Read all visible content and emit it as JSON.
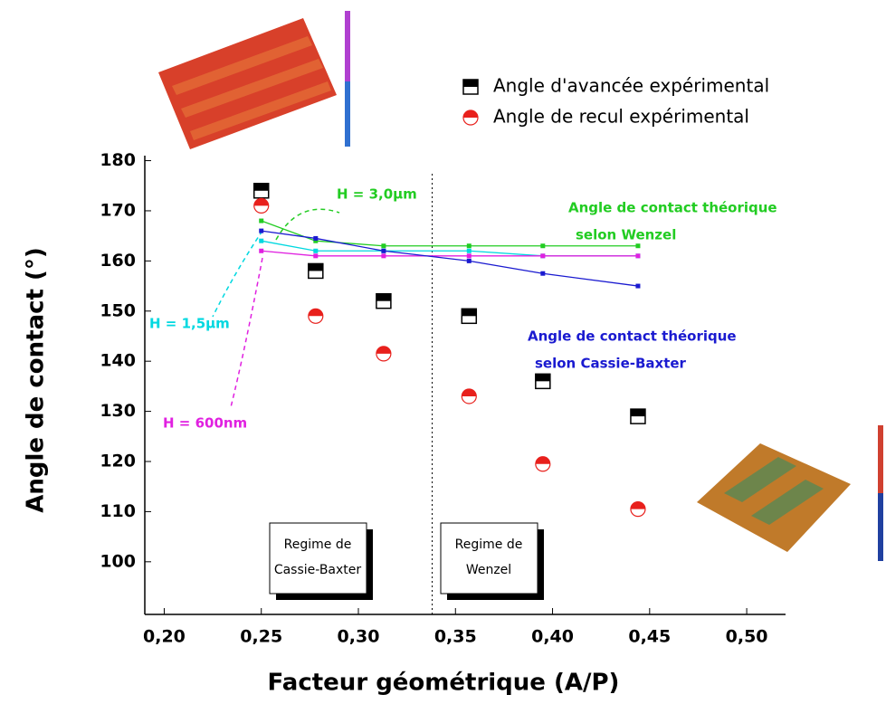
{
  "chart_data": {
    "type": "scatter-line",
    "x_label": "Facteur géométrique (A/P)",
    "y_label": "Angle de contact (°)",
    "xlim": [
      0.19,
      0.52
    ],
    "ylim": [
      89.5,
      181
    ],
    "xticks": [
      {
        "value": 0.2,
        "label": "0,20"
      },
      {
        "value": 0.25,
        "label": "0,25"
      },
      {
        "value": 0.3,
        "label": "0,30"
      },
      {
        "value": 0.35,
        "label": "0,35"
      },
      {
        "value": 0.4,
        "label": "0,40"
      },
      {
        "value": 0.45,
        "label": "0,45"
      },
      {
        "value": 0.5,
        "label": "0,50"
      }
    ],
    "yticks": [
      100,
      110,
      120,
      130,
      140,
      150,
      160,
      170,
      180
    ],
    "x": [
      0.25,
      0.278,
      0.313,
      0.357,
      0.395,
      0.444
    ],
    "series": [
      {
        "name": "Angle d'avancée expérimental",
        "color": "#000000",
        "marker": "square",
        "values": [
          174,
          158,
          152,
          149,
          136,
          129
        ]
      },
      {
        "name": "Angle de recul expérimental",
        "color": "#e8201c",
        "marker": "circle",
        "values": [
          171,
          149,
          141.5,
          133,
          119.5,
          110.5
        ]
      },
      {
        "name": "H = 3,0µm",
        "color": "#22cc22",
        "marker": "line",
        "values": [
          168,
          164,
          163,
          163,
          163,
          163
        ]
      },
      {
        "name": "H = 1,5µm",
        "color": "#00d8e0",
        "marker": "line",
        "values": [
          164,
          162,
          162,
          162,
          161,
          161
        ]
      },
      {
        "name": "H = 600nm",
        "color": "#e020e0",
        "marker": "line",
        "values": [
          162,
          161,
          161,
          161,
          161,
          161
        ]
      },
      {
        "color": "#1a1ad0",
        "marker": "line",
        "values": [
          166,
          164.5,
          162,
          160,
          157.5,
          155
        ]
      }
    ],
    "regime_boundary": 0.338,
    "wenzel_note": [
      "Angle de contact théorique",
      "selon Wenzel"
    ],
    "cassie_note": [
      "Angle de contact théorique",
      "selon Cassie-Baxter"
    ],
    "regime_left": [
      "Regime de",
      "Cassie-Baxter"
    ],
    "regime_right": [
      "Regime de",
      "Wenzel"
    ]
  }
}
